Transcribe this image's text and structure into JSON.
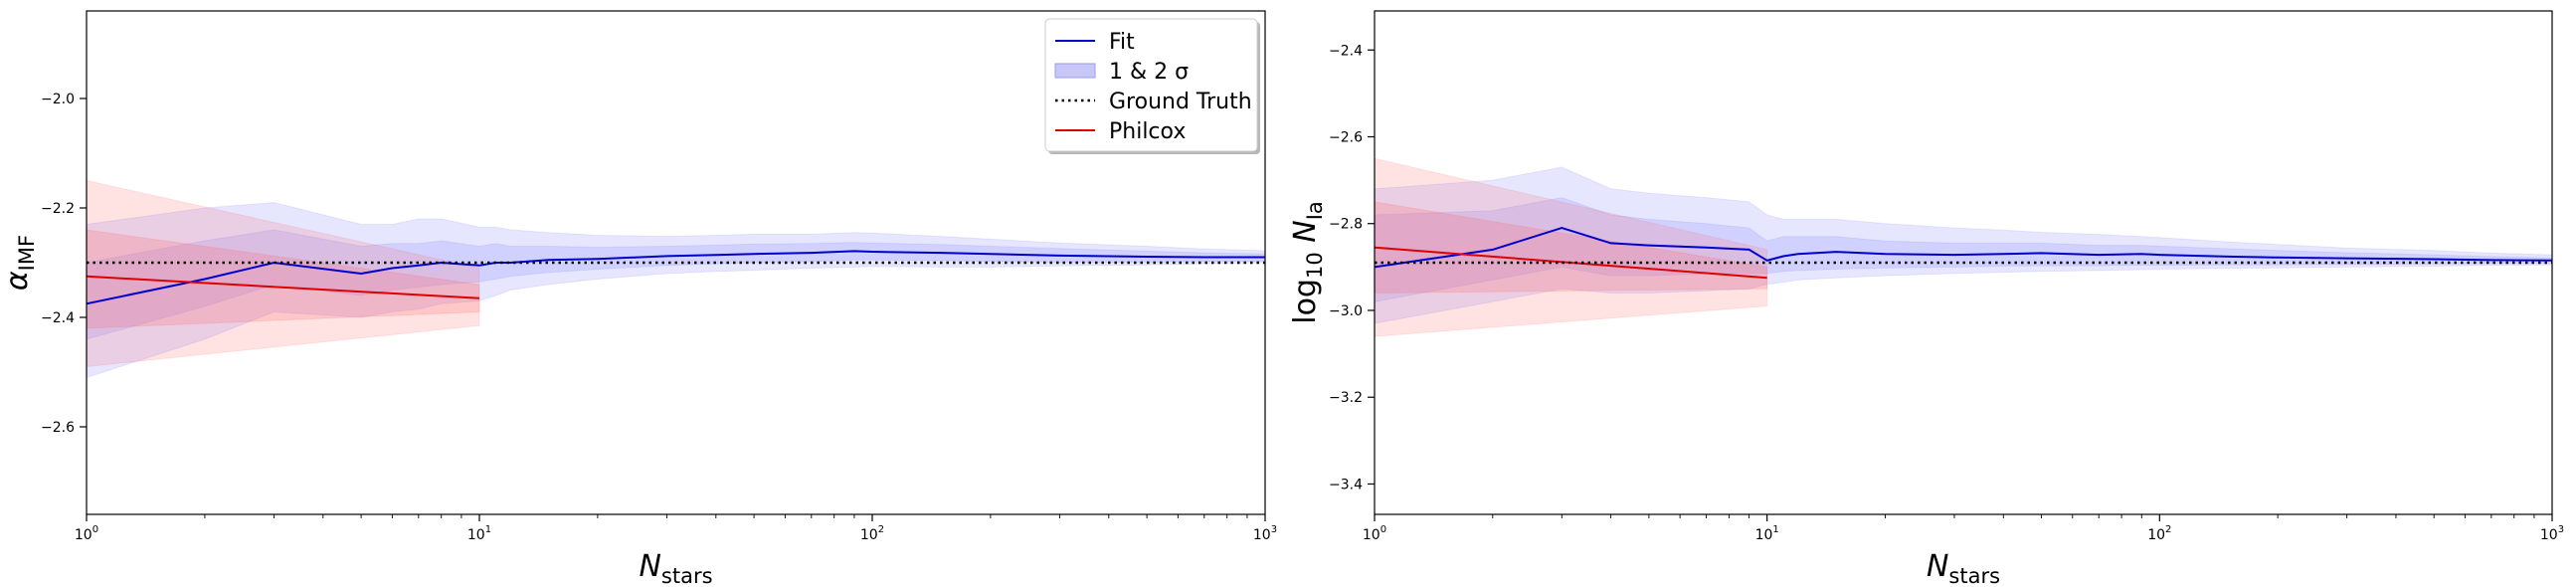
{
  "chart_data": [
    {
      "type": "line",
      "xscale": "log",
      "xlim": [
        1,
        1000
      ],
      "ylim": [
        -2.76,
        -1.84
      ],
      "xlabel": {
        "base": "N",
        "sub": "stars"
      },
      "ylabel": {
        "base": "α",
        "sub": "IMF"
      },
      "xticks": [
        {
          "value": 1,
          "exp": "0"
        },
        {
          "value": 10,
          "exp": "1"
        },
        {
          "value": 100,
          "exp": "2"
        },
        {
          "value": 1000,
          "exp": "3"
        }
      ],
      "xtick_base": "10",
      "yticks": [
        {
          "value": -2.6,
          "label": "−2.6"
        },
        {
          "value": -2.4,
          "label": "−2.4"
        },
        {
          "value": -2.2,
          "label": "−2.2"
        },
        {
          "value": -2.0,
          "label": "−2.0"
        }
      ],
      "ground_truth": -2.3,
      "fit": {
        "x": [
          1,
          2,
          3,
          5,
          6,
          7,
          8,
          10,
          11,
          12,
          15,
          20,
          30,
          40,
          50,
          70,
          90,
          100,
          150,
          200,
          300,
          500,
          700,
          1000
        ],
        "y": [
          -2.375,
          -2.33,
          -2.3,
          -2.32,
          -2.31,
          -2.305,
          -2.3,
          -2.305,
          -2.3,
          -2.3,
          -2.295,
          -2.293,
          -2.288,
          -2.286,
          -2.284,
          -2.282,
          -2.279,
          -2.28,
          -2.282,
          -2.284,
          -2.287,
          -2.289,
          -2.29,
          -2.29
        ],
        "band1_lower": [
          -2.44,
          -2.38,
          -2.34,
          -2.36,
          -2.35,
          -2.345,
          -2.34,
          -2.335,
          -2.33,
          -2.325,
          -2.318,
          -2.312,
          -2.305,
          -2.302,
          -2.3,
          -2.298,
          -2.295,
          -2.295,
          -2.296,
          -2.298,
          -2.299,
          -2.299,
          -2.298,
          -2.297
        ],
        "band1_upper": [
          -2.3,
          -2.26,
          -2.24,
          -2.27,
          -2.265,
          -2.265,
          -2.26,
          -2.27,
          -2.265,
          -2.27,
          -2.27,
          -2.272,
          -2.27,
          -2.268,
          -2.266,
          -2.265,
          -2.263,
          -2.264,
          -2.267,
          -2.27,
          -2.274,
          -2.279,
          -2.282,
          -2.284
        ],
        "band2_lower": [
          -2.51,
          -2.44,
          -2.39,
          -2.4,
          -2.39,
          -2.385,
          -2.375,
          -2.37,
          -2.36,
          -2.35,
          -2.34,
          -2.33,
          -2.32,
          -2.316,
          -2.314,
          -2.31,
          -2.308,
          -2.307,
          -2.308,
          -2.308,
          -2.306,
          -2.304,
          -2.302,
          -2.3
        ],
        "band2_upper": [
          -2.23,
          -2.2,
          -2.19,
          -2.23,
          -2.23,
          -2.22,
          -2.22,
          -2.235,
          -2.235,
          -2.24,
          -2.245,
          -2.25,
          -2.252,
          -2.25,
          -2.248,
          -2.248,
          -2.245,
          -2.246,
          -2.252,
          -2.257,
          -2.264,
          -2.27,
          -2.275,
          -2.278
        ]
      },
      "philcox": {
        "x": [
          1,
          10
        ],
        "y": [
          -2.325,
          -2.365
        ],
        "band1_lower": [
          -2.42,
          -2.39
        ],
        "band1_upper": [
          -2.24,
          -2.34
        ],
        "band2_lower": [
          -2.49,
          -2.415
        ],
        "band2_upper": [
          -2.15,
          -2.31
        ]
      },
      "legend": {
        "placement": "upper right",
        "entries": [
          {
            "label": "Fit",
            "kind": "line",
            "color": "#0000cc"
          },
          {
            "label": "1 & 2 σ",
            "kind": "patch",
            "color": "#c8c8f8"
          },
          {
            "label": "Ground Truth",
            "kind": "dotted",
            "color": "#000000"
          },
          {
            "label": "Philcox",
            "kind": "line",
            "color": "#dd0000"
          }
        ]
      }
    },
    {
      "type": "line",
      "xscale": "log",
      "xlim": [
        1,
        1000
      ],
      "ylim": [
        -3.47,
        -2.31
      ],
      "xlabel": {
        "base": "N",
        "sub": "stars"
      },
      "ylabel": {
        "base": "log",
        "log_sub": "10",
        "var": "N",
        "var_sub": "Ia"
      },
      "xticks": [
        {
          "value": 1,
          "exp": "0"
        },
        {
          "value": 10,
          "exp": "1"
        },
        {
          "value": 100,
          "exp": "2"
        },
        {
          "value": 1000,
          "exp": "3"
        }
      ],
      "xtick_base": "10",
      "yticks": [
        {
          "value": -3.4,
          "label": "−3.4"
        },
        {
          "value": -3.2,
          "label": "−3.2"
        },
        {
          "value": -3.0,
          "label": "−3.0"
        },
        {
          "value": -2.8,
          "label": "−2.8"
        },
        {
          "value": -2.6,
          "label": "−2.6"
        },
        {
          "value": -2.4,
          "label": "−2.4"
        }
      ],
      "ground_truth": -2.89,
      "fit": {
        "x": [
          1,
          2,
          3,
          4,
          5,
          7,
          9,
          10,
          11,
          12,
          15,
          20,
          30,
          40,
          50,
          70,
          90,
          100,
          150,
          200,
          300,
          500,
          700,
          1000
        ],
        "y": [
          -2.9,
          -2.86,
          -2.81,
          -2.845,
          -2.85,
          -2.855,
          -2.86,
          -2.885,
          -2.875,
          -2.87,
          -2.865,
          -2.87,
          -2.872,
          -2.87,
          -2.868,
          -2.872,
          -2.87,
          -2.872,
          -2.876,
          -2.878,
          -2.88,
          -2.882,
          -2.884,
          -2.885
        ],
        "band1_lower": [
          -2.98,
          -2.93,
          -2.9,
          -2.92,
          -2.92,
          -2.915,
          -2.915,
          -2.915,
          -2.91,
          -2.908,
          -2.905,
          -2.902,
          -2.9,
          -2.898,
          -2.897,
          -2.897,
          -2.896,
          -2.896,
          -2.895,
          -2.895,
          -2.894,
          -2.893,
          -2.892,
          -2.891
        ],
        "band1_upper": [
          -2.78,
          -2.77,
          -2.74,
          -2.78,
          -2.79,
          -2.8,
          -2.81,
          -2.84,
          -2.83,
          -2.83,
          -2.83,
          -2.84,
          -2.845,
          -2.845,
          -2.845,
          -2.85,
          -2.85,
          -2.852,
          -2.858,
          -2.862,
          -2.867,
          -2.872,
          -2.876,
          -2.879
        ],
        "band2_lower": [
          -3.03,
          -2.98,
          -2.95,
          -2.96,
          -2.96,
          -2.955,
          -2.95,
          -2.94,
          -2.935,
          -2.93,
          -2.925,
          -2.92,
          -2.915,
          -2.912,
          -2.91,
          -2.908,
          -2.906,
          -2.905,
          -2.903,
          -2.902,
          -2.9,
          -2.898,
          -2.896,
          -2.895
        ],
        "band2_upper": [
          -2.72,
          -2.7,
          -2.67,
          -2.72,
          -2.73,
          -2.74,
          -2.75,
          -2.78,
          -2.79,
          -2.79,
          -2.79,
          -2.8,
          -2.81,
          -2.815,
          -2.82,
          -2.825,
          -2.83,
          -2.832,
          -2.842,
          -2.848,
          -2.856,
          -2.862,
          -2.868,
          -2.872
        ]
      },
      "philcox": {
        "x": [
          1,
          10
        ],
        "y": [
          -2.855,
          -2.925
        ],
        "band1_lower": [
          -2.96,
          -2.95
        ],
        "band1_upper": [
          -2.75,
          -2.9
        ],
        "band2_lower": [
          -3.06,
          -2.99
        ],
        "band2_upper": [
          -2.65,
          -2.86
        ]
      }
    }
  ]
}
